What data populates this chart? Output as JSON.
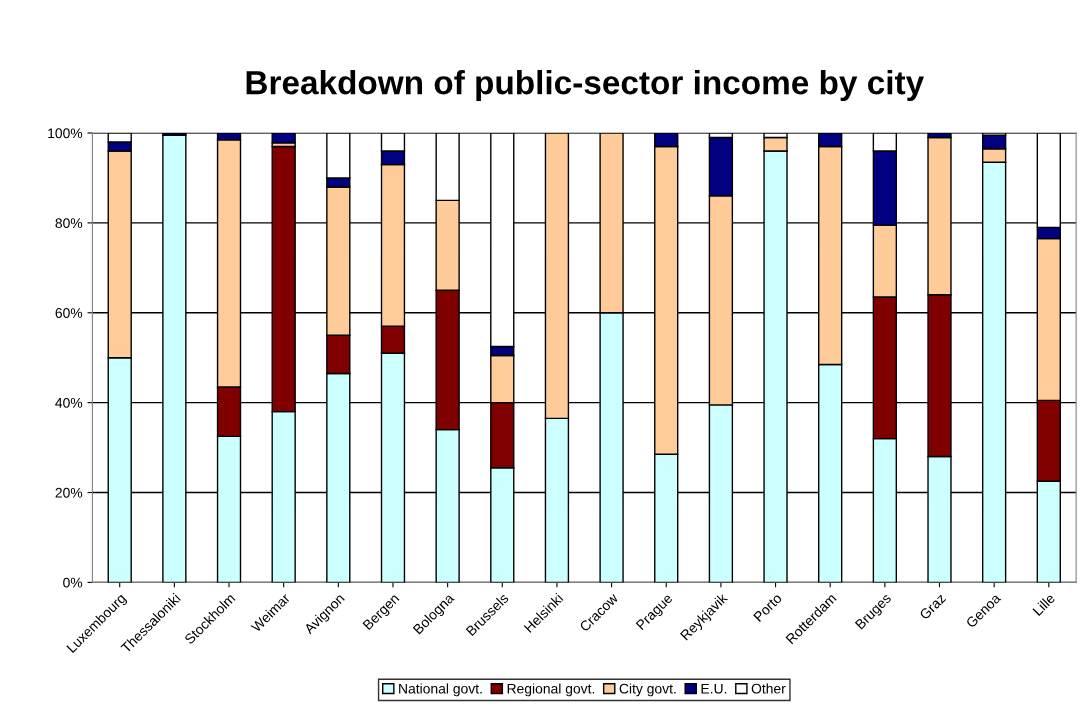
{
  "chart_data": {
    "type": "bar",
    "stacked": true,
    "title": "Breakdown of public-sector income by city",
    "categories": [
      "Luxembourg",
      "Thessaloniki",
      "Stockholm",
      "Weimar",
      "Avignon",
      "Bergen",
      "Bologna",
      "Brussels",
      "Helsinki",
      "Cracow",
      "Prague",
      "Reykjavik",
      "Porto",
      "Rotterdam",
      "Bruges",
      "Graz",
      "Genoa",
      "Lille"
    ],
    "series": [
      {
        "name": "National govt.",
        "color": "#ccffff",
        "values": [
          50,
          99.5,
          32.5,
          38,
          46.5,
          51,
          34,
          25.5,
          36.5,
          60,
          28.5,
          39.5,
          96,
          48.5,
          32,
          28,
          93.5,
          22.5
        ]
      },
      {
        "name": "Regional govt.",
        "color": "#800000",
        "values": [
          0,
          0,
          11,
          59,
          8.5,
          6,
          31,
          14.5,
          0,
          0,
          0,
          0,
          0,
          0,
          31.5,
          36,
          0,
          18
        ]
      },
      {
        "name": "City govt.",
        "color": "#ffcc99",
        "values": [
          46,
          0,
          55,
          0.8,
          33,
          36,
          20,
          10.5,
          63.5,
          40,
          68.5,
          46.5,
          3,
          48.5,
          16,
          35,
          3,
          36
        ]
      },
      {
        "name": "E.U.",
        "color": "#000080",
        "values": [
          2,
          0.5,
          1.5,
          2.2,
          2,
          3,
          0,
          2,
          0,
          0,
          3,
          13,
          0,
          3,
          16.5,
          1,
          3,
          2.5
        ]
      },
      {
        "name": "Other",
        "color": "#ffffff",
        "values": [
          2,
          0,
          0,
          0,
          10,
          4,
          15,
          47.5,
          0,
          0,
          0,
          1,
          1,
          0,
          4,
          0,
          0.5,
          21
        ]
      }
    ],
    "ylim": [
      0,
      100
    ],
    "yticks": [
      {
        "value": 0,
        "label": "0%"
      },
      {
        "value": 20,
        "label": "20%"
      },
      {
        "value": 40,
        "label": "40%"
      },
      {
        "value": 60,
        "label": "60%"
      },
      {
        "value": 80,
        "label": "80%"
      },
      {
        "value": 100,
        "label": "100%"
      }
    ],
    "grid": "y",
    "legend": "bottom"
  }
}
